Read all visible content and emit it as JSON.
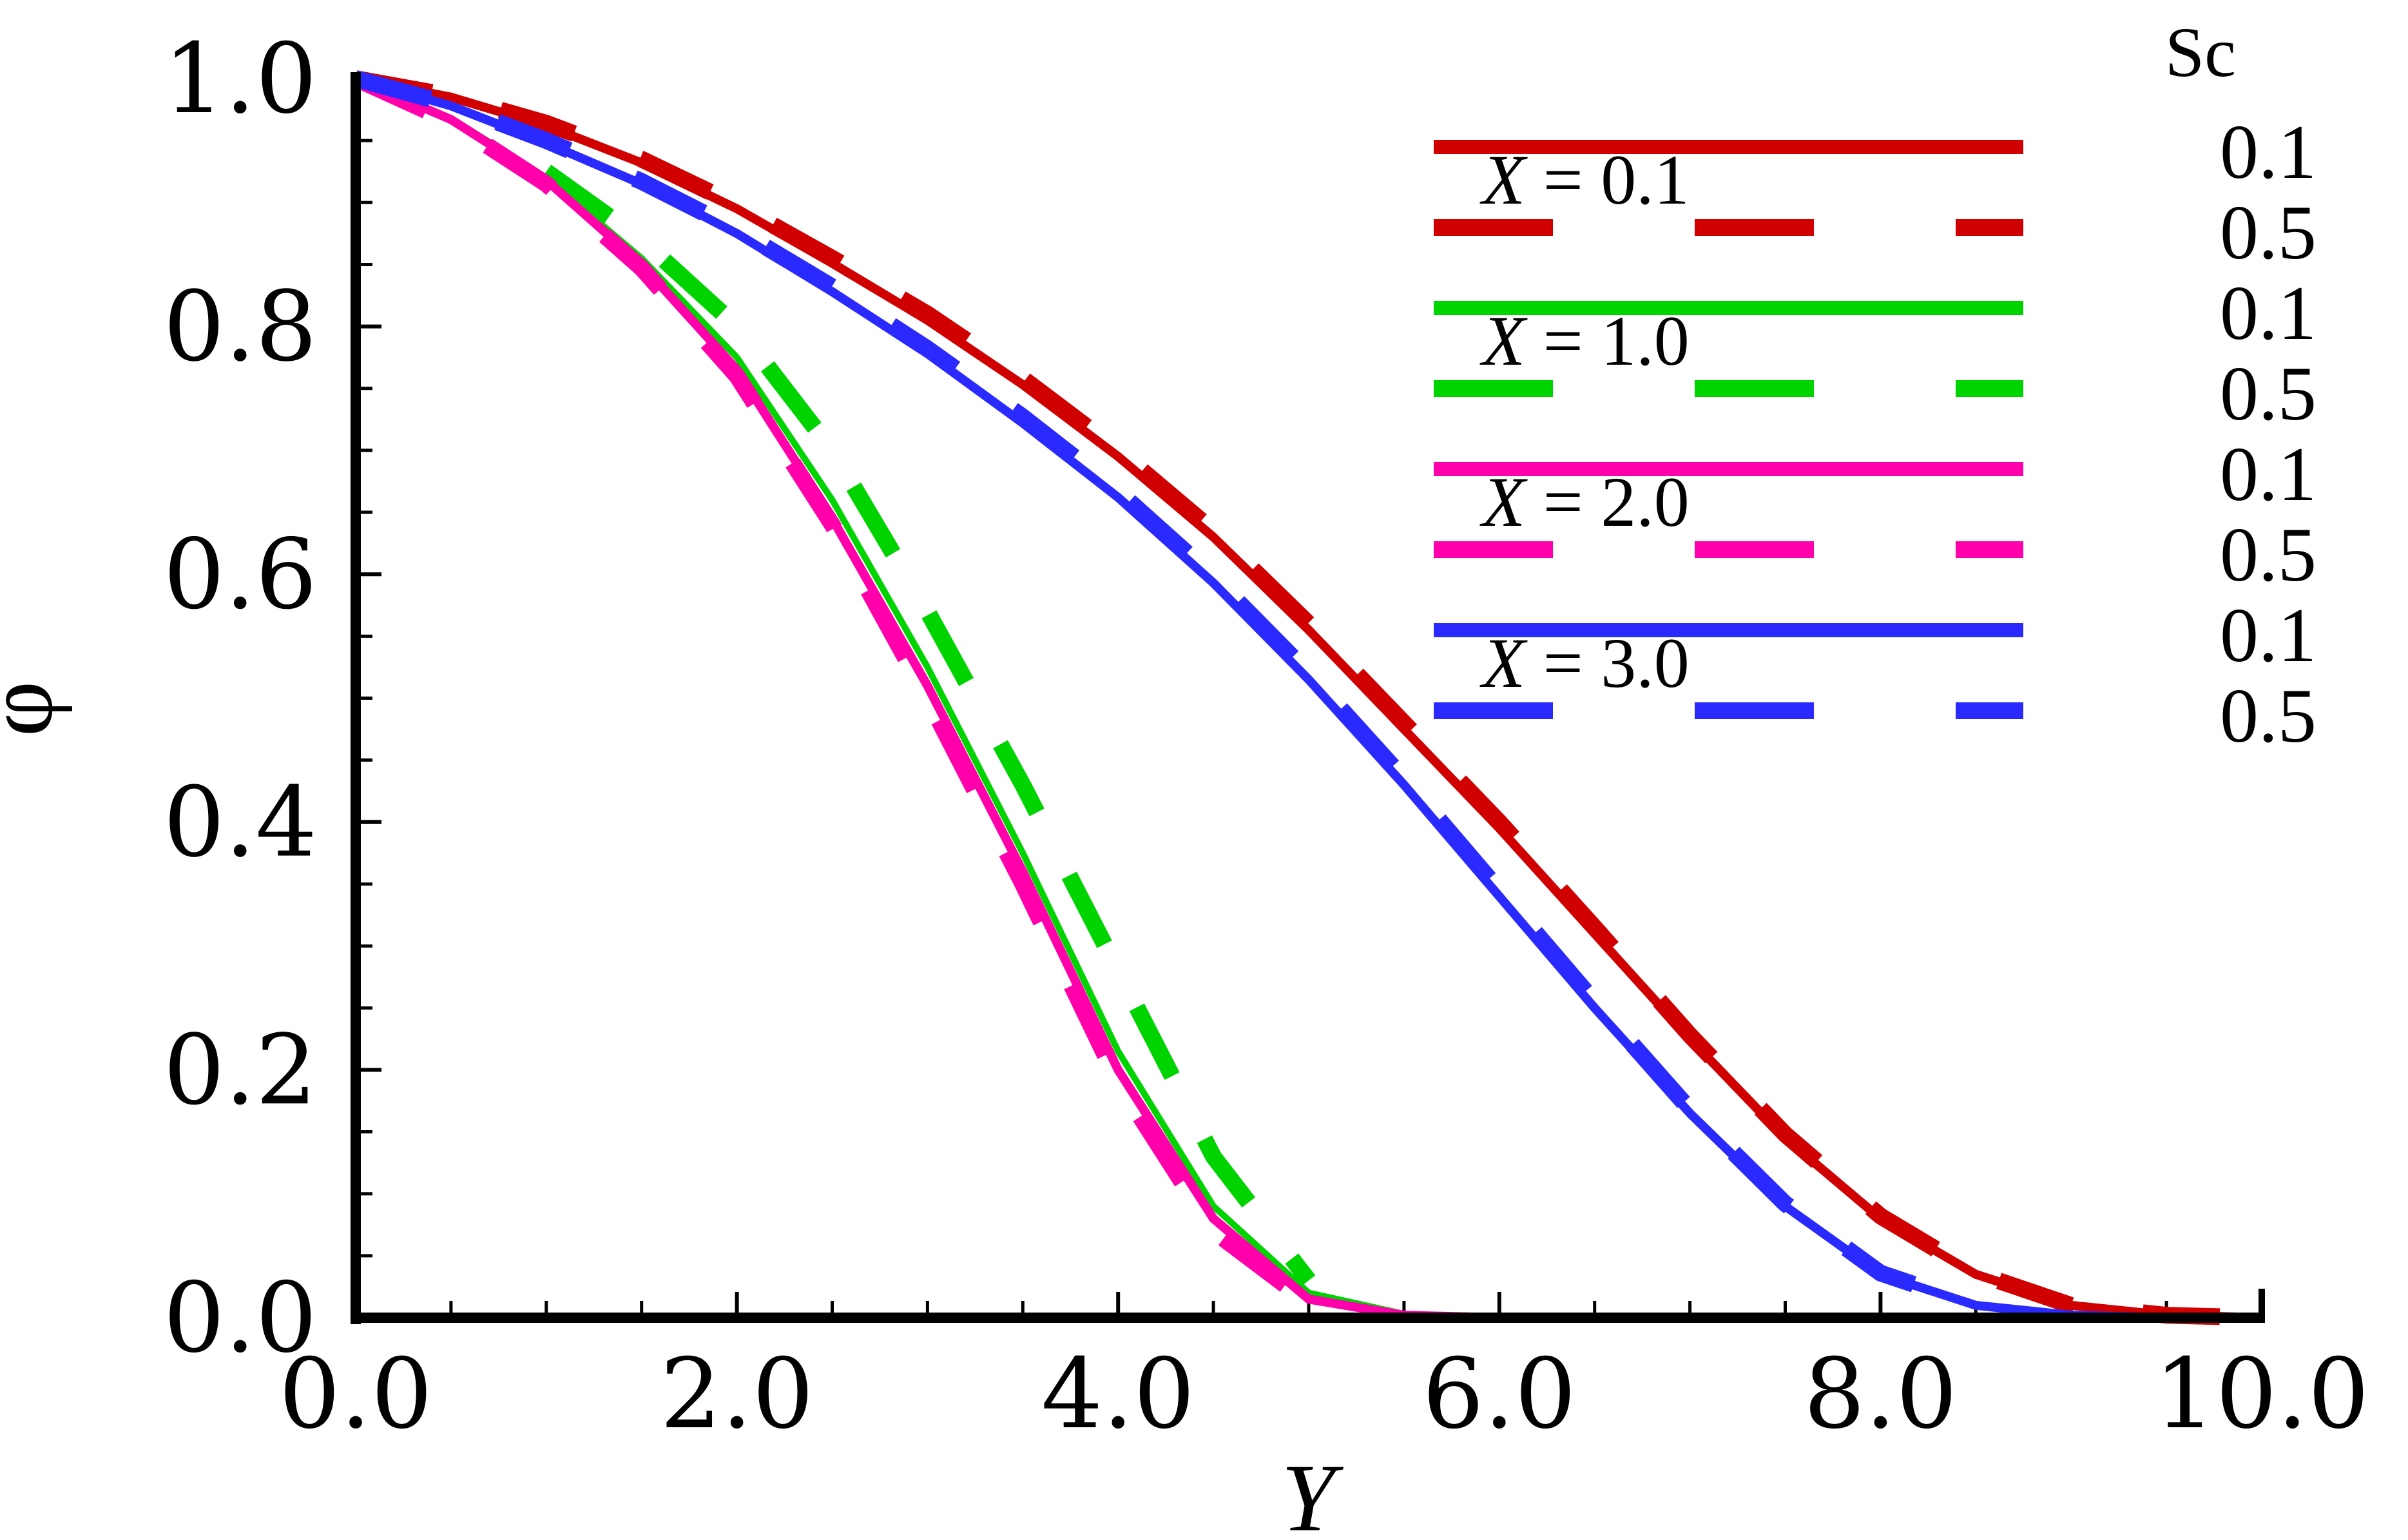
{
  "chart_data": {
    "type": "line",
    "title": "",
    "xlabel": "Y",
    "ylabel": "φ",
    "xlim": [
      0,
      10
    ],
    "ylim": [
      0,
      1
    ],
    "x_ticks": [
      "0.0",
      "2.0",
      "4.0",
      "6.0",
      "8.0",
      "10.0"
    ],
    "y_ticks": [
      "0.0",
      "0.2",
      "0.4",
      "0.6",
      "0.8",
      "1.0"
    ],
    "legend_header": "Sc",
    "legend_position": "top-right",
    "groups": [
      {
        "label": "X = 0.1",
        "x_var": "X",
        "x_value": "0.1",
        "color": "#d10000"
      },
      {
        "label": "X = 1.0",
        "x_var": "X",
        "x_value": "1.0",
        "color": "#00d400"
      },
      {
        "label": "X = 2.0",
        "x_var": "X",
        "x_value": "2.0",
        "color": "#ff00aa"
      },
      {
        "label": "X = 3.0",
        "x_var": "X",
        "x_value": "3.0",
        "color": "#2a2aff"
      }
    ],
    "series": [
      {
        "name": "X = 0.1, Sc = 0.1",
        "group": 0,
        "sc": "0.1",
        "style": "solid",
        "color": "#d10000",
        "x": [
          0,
          0.5,
          1,
          1.5,
          2,
          2.5,
          3,
          3.5,
          4,
          4.5,
          5,
          5.5,
          6,
          6.5,
          7,
          7.5,
          8,
          8.5,
          9,
          9.5,
          10
        ],
        "y": [
          1.0,
          0.985,
          0.962,
          0.932,
          0.895,
          0.851,
          0.805,
          0.753,
          0.695,
          0.63,
          0.555,
          0.475,
          0.395,
          0.31,
          0.225,
          0.145,
          0.08,
          0.035,
          0.01,
          0.002,
          0.0
        ]
      },
      {
        "name": "X = 0.1, Sc = 0.5",
        "group": 0,
        "sc": "0.5",
        "style": "dashed",
        "color": "#d10000",
        "x": [
          0,
          0.5,
          1,
          1.5,
          2,
          2.5,
          3,
          3.5,
          4,
          4.5,
          5,
          5.5,
          6,
          6.5,
          7,
          7.5,
          8,
          8.5,
          9,
          9.5,
          10
        ],
        "y": [
          1.0,
          0.986,
          0.964,
          0.935,
          0.898,
          0.855,
          0.81,
          0.758,
          0.7,
          0.635,
          0.56,
          0.48,
          0.4,
          0.315,
          0.228,
          0.148,
          0.082,
          0.036,
          0.01,
          0.002,
          0.0
        ]
      },
      {
        "name": "X = 1.0, Sc = 0.1",
        "group": 1,
        "sc": "0.1",
        "style": "solid",
        "color": "#00d400",
        "x": [
          0,
          0.5,
          1,
          1.5,
          2,
          2.5,
          3,
          3.5,
          4,
          4.5,
          5,
          5.5,
          6,
          7,
          8,
          9,
          10
        ],
        "y": [
          1.0,
          0.968,
          0.92,
          0.855,
          0.775,
          0.66,
          0.525,
          0.375,
          0.215,
          0.09,
          0.02,
          0.003,
          0.0,
          0.0,
          0.0,
          0.0,
          0.0
        ]
      },
      {
        "name": "X = 1.0, Sc = 0.5",
        "group": 1,
        "sc": "0.5",
        "style": "dashed",
        "color": "#00d400",
        "x": [
          1.0,
          1.5,
          2,
          2.5,
          3,
          3.5,
          4,
          4.5,
          5.0
        ],
        "y": [
          0.925,
          0.87,
          0.8,
          0.7,
          0.57,
          0.43,
          0.28,
          0.13,
          0.03
        ]
      },
      {
        "name": "X = 2.0, Sc = 0.1",
        "group": 2,
        "sc": "0.1",
        "style": "solid",
        "color": "#ff00aa",
        "x": [
          0,
          0.5,
          1,
          1.5,
          2,
          2.5,
          3,
          3.5,
          4,
          4.5,
          5,
          5.5,
          6,
          7,
          8,
          9,
          10
        ],
        "y": [
          1.0,
          0.967,
          0.918,
          0.85,
          0.765,
          0.645,
          0.51,
          0.36,
          0.2,
          0.08,
          0.015,
          0.002,
          0.0,
          0.0,
          0.0,
          0.0,
          0.0
        ]
      },
      {
        "name": "X = 2.0, Sc = 0.5",
        "group": 2,
        "sc": "0.5",
        "style": "dashed",
        "color": "#ff00aa",
        "x": [
          0,
          0.5,
          1,
          1.5,
          2,
          2.5,
          3,
          3.5,
          4,
          4.5,
          5
        ],
        "y": [
          1.0,
          0.965,
          0.915,
          0.847,
          0.76,
          0.64,
          0.5,
          0.35,
          0.19,
          0.07,
          0.012
        ]
      },
      {
        "name": "X = 3.0, Sc = 0.1",
        "group": 3,
        "sc": "0.1",
        "style": "solid",
        "color": "#2a2aff",
        "x": [
          0,
          0.5,
          1,
          1.5,
          2,
          2.5,
          3,
          3.5,
          4,
          4.5,
          5,
          5.5,
          6,
          6.5,
          7,
          7.5,
          8,
          8.5,
          9,
          9.5,
          10
        ],
        "y": [
          1.0,
          0.978,
          0.948,
          0.915,
          0.875,
          0.828,
          0.778,
          0.722,
          0.662,
          0.593,
          0.515,
          0.43,
          0.34,
          0.25,
          0.165,
          0.09,
          0.035,
          0.01,
          0.002,
          0.0,
          0.0
        ]
      },
      {
        "name": "X = 3.0, Sc = 0.5",
        "group": 3,
        "sc": "0.5",
        "style": "dashed",
        "color": "#2a2aff",
        "x": [
          0,
          0.5,
          1,
          1.5,
          2,
          2.5,
          3,
          3.5,
          4,
          4.5,
          5,
          5.5,
          6,
          6.5,
          7,
          7.5,
          8,
          8.5
        ],
        "y": [
          1.0,
          0.979,
          0.95,
          0.917,
          0.878,
          0.832,
          0.782,
          0.727,
          0.667,
          0.598,
          0.52,
          0.435,
          0.345,
          0.255,
          0.168,
          0.092,
          0.036,
          0.01
        ]
      }
    ]
  }
}
